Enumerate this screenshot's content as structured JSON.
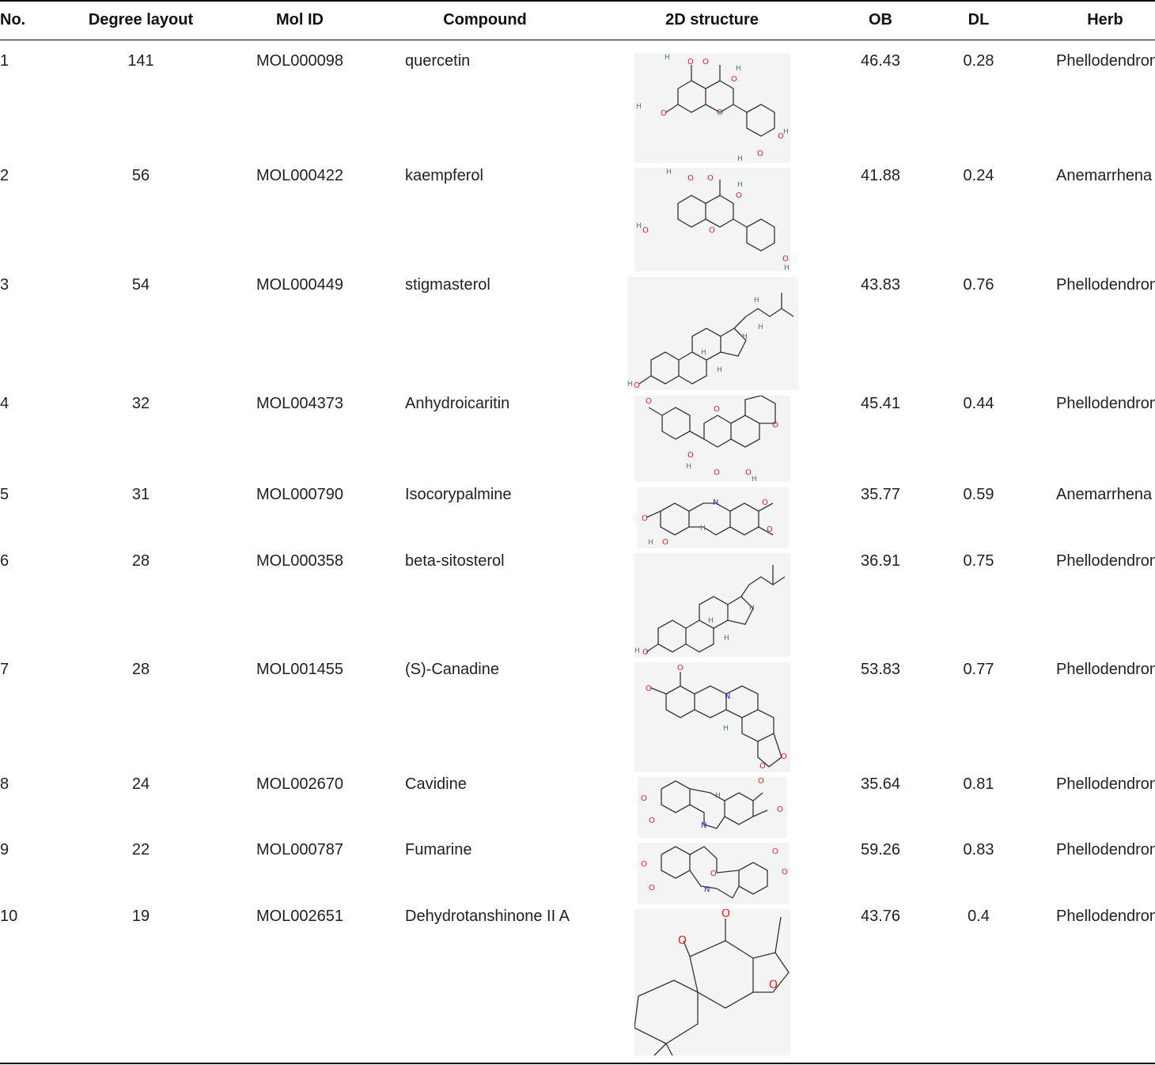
{
  "headers": {
    "no": "No.",
    "degree": "Degree layout",
    "molid": "Mol ID",
    "compound": "Compound",
    "structure": "2D structure",
    "ob": "OB",
    "dl": "DL",
    "herb": "Herb"
  },
  "rows": [
    {
      "no": "1",
      "degree": "141",
      "molid": "MOL000098",
      "compound": "quercetin",
      "ob": "46.43",
      "dl": "0.28",
      "herb": "Phellodendron",
      "structure_icon": "quercetin-structure"
    },
    {
      "no": "2",
      "degree": "56",
      "molid": "MOL000422",
      "compound": "kaempferol",
      "ob": "41.88",
      "dl": "0.24",
      "herb": "Anemarrhena",
      "structure_icon": "kaempferol-structure"
    },
    {
      "no": "3",
      "degree": "54",
      "molid": "MOL000449",
      "compound": "stigmasterol",
      "ob": "43.83",
      "dl": "0.76",
      "herb": "Phellodendron",
      "structure_icon": "stigmasterol-structure"
    },
    {
      "no": "4",
      "degree": "32",
      "molid": "MOL004373",
      "compound": "Anhydroicaritin",
      "ob": "45.41",
      "dl": "0.44",
      "herb": "Phellodendron",
      "structure_icon": "anhydroicaritin-structure"
    },
    {
      "no": "5",
      "degree": "31",
      "molid": "MOL000790",
      "compound": "Isocorypalmine",
      "ob": "35.77",
      "dl": "0.59",
      "herb": "Anemarrhena",
      "structure_icon": "isocorypalmine-structure"
    },
    {
      "no": "6",
      "degree": "28",
      "molid": "MOL000358",
      "compound": "beta-sitosterol",
      "ob": "36.91",
      "dl": "0.75",
      "herb": "Phellodendron",
      "structure_icon": "beta-sitosterol-structure"
    },
    {
      "no": "7",
      "degree": "28",
      "molid": "MOL001455",
      "compound": "(S)-Canadine",
      "ob": "53.83",
      "dl": "0.77",
      "herb": "Phellodendron",
      "structure_icon": "canadine-structure"
    },
    {
      "no": "8",
      "degree": "24",
      "molid": "MOL002670",
      "compound": "Cavidine",
      "ob": "35.64",
      "dl": "0.81",
      "herb": "Phellodendron",
      "structure_icon": "cavidine-structure"
    },
    {
      "no": "9",
      "degree": "22",
      "molid": "MOL000787",
      "compound": "Fumarine",
      "ob": "59.26",
      "dl": "0.83",
      "herb": "Phellodendron",
      "structure_icon": "fumarine-structure"
    },
    {
      "no": "10",
      "degree": "19",
      "molid": "MOL002651",
      "compound": "Dehydrotanshinone II A",
      "ob": "43.76",
      "dl": "0.4",
      "herb": "Phellodendron",
      "structure_icon": "dehydrotanshinone-structure"
    }
  ]
}
